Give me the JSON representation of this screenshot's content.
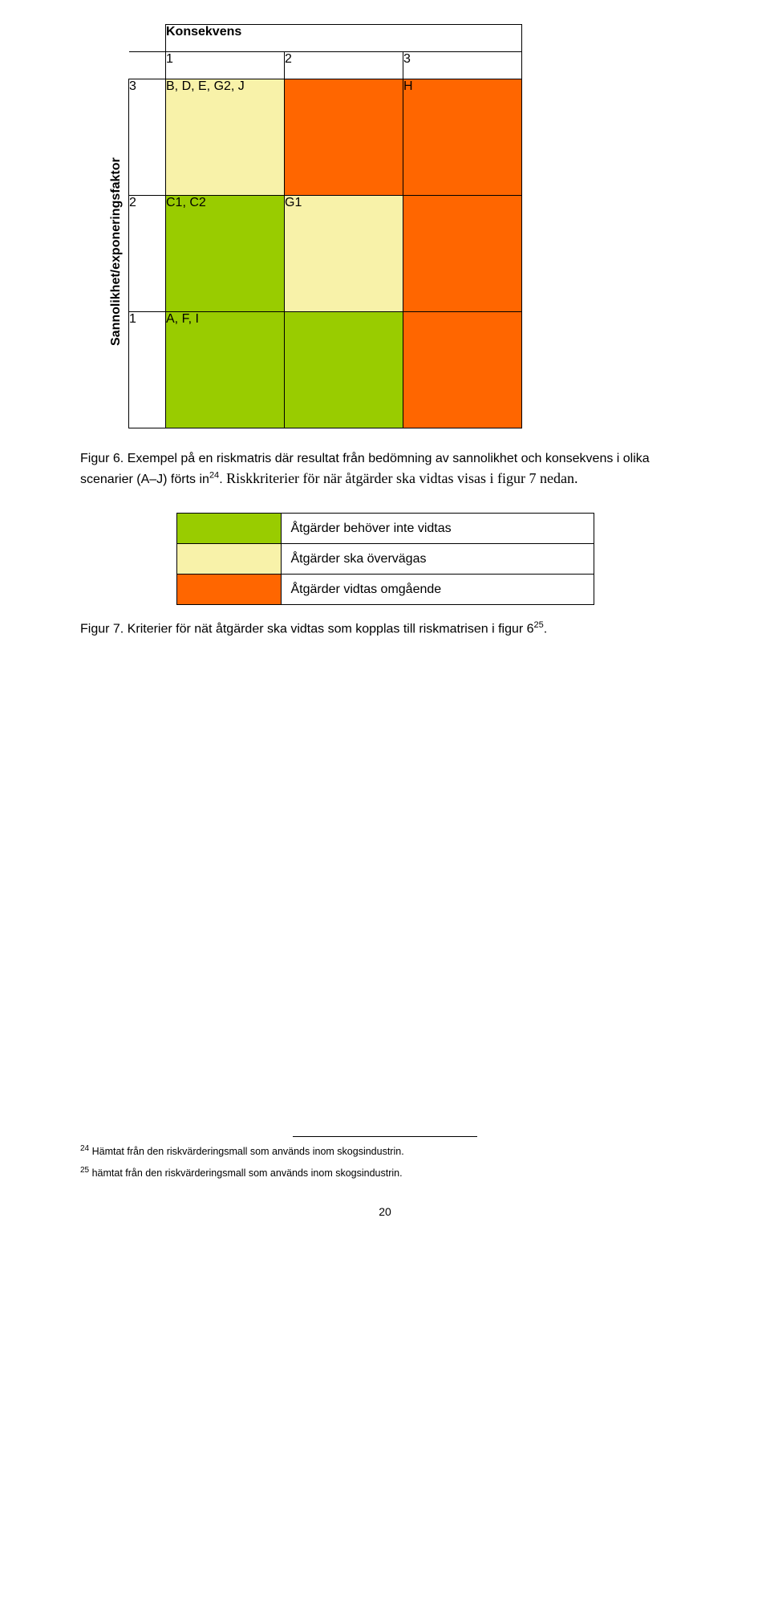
{
  "colors": {
    "green": "#99cc00",
    "yellow": "#f8f2a9",
    "orange": "#ff6600"
  },
  "matrix": {
    "title": "Konsekvens",
    "y_axis_label": "Sannolikhet/exponeringsfaktor",
    "col_headers": [
      "1",
      "2",
      "3"
    ],
    "rows": [
      {
        "num": "3",
        "cells": [
          {
            "text": "B, D, E, G2, J",
            "bg": "yellow"
          },
          {
            "text": "",
            "bg": "orange"
          },
          {
            "text": "H",
            "bg": "orange"
          }
        ]
      },
      {
        "num": "2",
        "cells": [
          {
            "text": "C1, C2",
            "bg": "green"
          },
          {
            "text": "G1",
            "bg": "yellow"
          },
          {
            "text": "",
            "bg": "orange"
          }
        ]
      },
      {
        "num": "1",
        "cells": [
          {
            "text": "A, F, I",
            "bg": "green"
          },
          {
            "text": "",
            "bg": "green"
          },
          {
            "text": "",
            "bg": "orange"
          }
        ]
      }
    ]
  },
  "fig6_caption_a": "Figur 6. Exempel på en riskmatris där resultat från bedömning av sannolikhet och konsekvens i olika scenarier (A–J) förts in",
  "fig6_caption_sup": "24",
  "fig6_caption_b": "Riskkriterier för när åtgärder ska vidtas visas i figur 7 nedan.",
  "legend": [
    {
      "bg": "green",
      "text": "Åtgärder behöver inte vidtas"
    },
    {
      "bg": "yellow",
      "text": "Åtgärder ska övervägas"
    },
    {
      "bg": "orange",
      "text": "Åtgärder vidtas omgående"
    }
  ],
  "fig7_caption": "Figur 7. Kriterier för nät åtgärder ska vidtas som kopplas till riskmatrisen i figur 6",
  "fig7_caption_sup": "25",
  "footnotes": [
    {
      "num": "24",
      "text": "Hämtat från den riskvärderingsmall som används inom skogsindustrin."
    },
    {
      "num": "25",
      "text": "hämtat från den riskvärderingsmall som används inom skogsindustrin."
    }
  ],
  "page_number": "20"
}
